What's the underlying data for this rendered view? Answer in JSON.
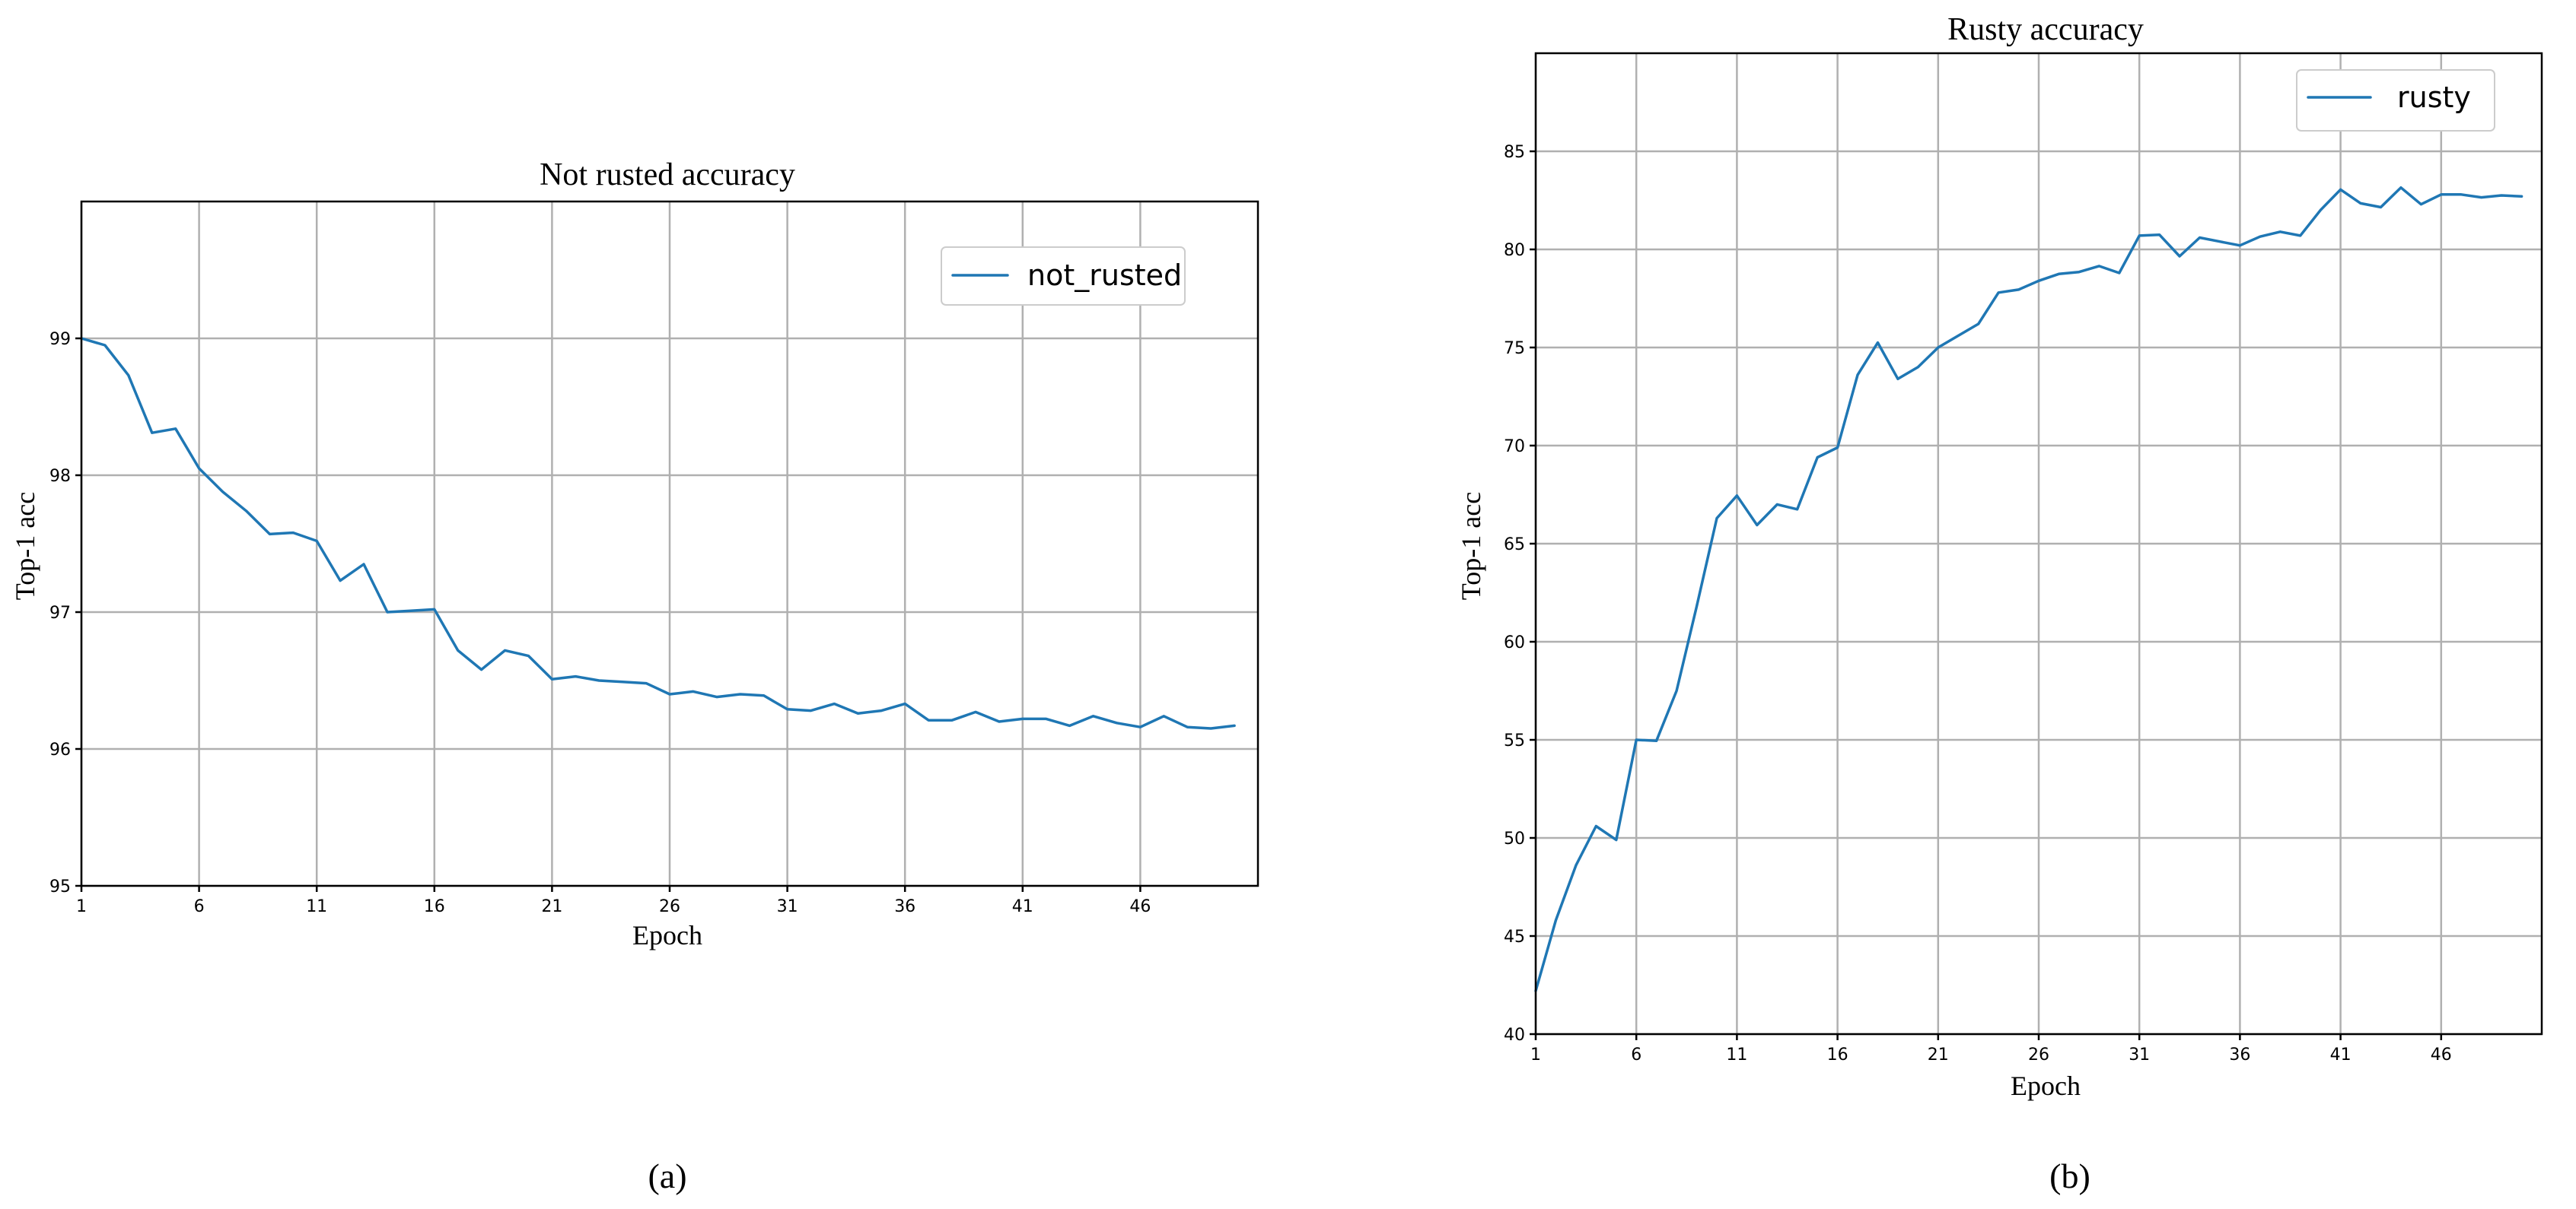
{
  "colors": {
    "series": "#1f77b4"
  },
  "chart_data": [
    {
      "type": "line",
      "title": "Not rusted accuracy",
      "xlabel": "Epoch",
      "ylabel": "Top-1 acc",
      "caption": "(a)",
      "xlim": [
        1,
        51
      ],
      "ylim": [
        95,
        100
      ],
      "xticks": [
        1,
        6,
        11,
        16,
        21,
        26,
        31,
        36,
        41,
        46
      ],
      "yticks": [
        95,
        96,
        97,
        98,
        99
      ],
      "grid": true,
      "legend_position": "top-right",
      "series": [
        {
          "name": "not_rusted",
          "x": [
            1,
            2,
            3,
            4,
            5,
            6,
            7,
            8,
            9,
            10,
            11,
            12,
            13,
            14,
            15,
            16,
            17,
            18,
            19,
            20,
            21,
            22,
            23,
            24,
            25,
            26,
            27,
            28,
            29,
            30,
            31,
            32,
            33,
            34,
            35,
            36,
            37,
            38,
            39,
            40,
            41,
            42,
            43,
            44,
            45,
            46,
            47,
            48,
            49,
            50
          ],
          "y": [
            99.0,
            98.95,
            98.73,
            98.31,
            98.34,
            98.05,
            97.88,
            97.74,
            97.57,
            97.58,
            97.52,
            97.23,
            97.35,
            97.0,
            97.01,
            97.02,
            96.72,
            96.58,
            96.72,
            96.68,
            96.51,
            96.53,
            96.5,
            96.49,
            96.48,
            96.4,
            96.42,
            96.38,
            96.4,
            96.39,
            96.29,
            96.28,
            96.33,
            96.26,
            96.28,
            96.33,
            96.21,
            96.21,
            96.27,
            96.2,
            96.22,
            96.22,
            96.17,
            96.24,
            96.19,
            96.16,
            96.24,
            96.16,
            96.15,
            96.17
          ]
        }
      ]
    },
    {
      "type": "line",
      "title": "Rusty accuracy",
      "xlabel": "Epoch",
      "ylabel": "Top-1 acc",
      "caption": "(b)",
      "xlim": [
        1,
        51
      ],
      "ylim": [
        40,
        90
      ],
      "xticks": [
        1,
        6,
        11,
        16,
        21,
        26,
        31,
        36,
        41,
        46
      ],
      "yticks": [
        40,
        45,
        50,
        55,
        60,
        65,
        70,
        75,
        80,
        85
      ],
      "grid": true,
      "legend_position": "top-right",
      "series": [
        {
          "name": "rusty",
          "x": [
            1,
            2,
            3,
            4,
            5,
            6,
            7,
            8,
            9,
            10,
            11,
            12,
            13,
            14,
            15,
            16,
            17,
            18,
            19,
            20,
            21,
            22,
            23,
            24,
            25,
            26,
            27,
            28,
            29,
            30,
            31,
            32,
            33,
            34,
            35,
            36,
            37,
            38,
            39,
            40,
            41,
            42,
            43,
            44,
            45,
            46,
            47,
            48,
            49,
            50
          ],
          "y": [
            42.2,
            45.8,
            48.6,
            50.6,
            49.9,
            55.0,
            54.95,
            57.5,
            61.8,
            66.3,
            67.45,
            65.95,
            67.0,
            66.75,
            69.4,
            69.9,
            73.6,
            75.25,
            73.4,
            74.0,
            75.0,
            75.6,
            76.2,
            77.8,
            77.95,
            78.4,
            78.75,
            78.85,
            79.15,
            78.8,
            80.7,
            80.75,
            79.65,
            80.6,
            80.4,
            80.2,
            80.65,
            80.9,
            80.7,
            82.0,
            83.05,
            82.35,
            82.15,
            83.15,
            82.3,
            82.8,
            82.8,
            82.65,
            82.75,
            82.7
          ]
        }
      ]
    }
  ]
}
